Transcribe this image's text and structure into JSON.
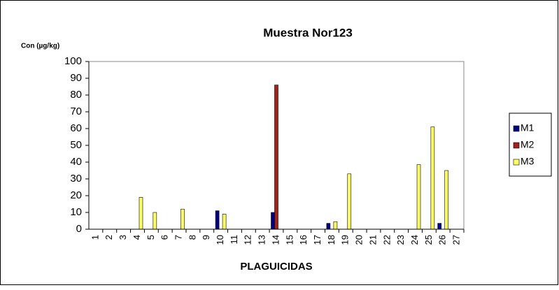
{
  "chart_data": {
    "type": "bar",
    "title": "Muestra Nor123",
    "y_label": "Con (µg/kg)",
    "x_label": "PLAGUICIDAS",
    "categories": [
      "1",
      "2",
      "3",
      "4",
      "5",
      "6",
      "7",
      "8",
      "9",
      "10",
      "11",
      "12",
      "13",
      "14",
      "15",
      "16",
      "17",
      "18",
      "19",
      "20",
      "21",
      "22",
      "23",
      "24",
      "25",
      "26",
      "27"
    ],
    "series": [
      {
        "name": "M1",
        "color": "#000080",
        "values": [
          0,
          0,
          0,
          0,
          0,
          0,
          0,
          0,
          0,
          11,
          0,
          0,
          0,
          10,
          0,
          0,
          0,
          3.5,
          0,
          0,
          0,
          0,
          0,
          0,
          0,
          3.5,
          0
        ]
      },
      {
        "name": "M2",
        "color": "#a3201d",
        "values": [
          0,
          0,
          0,
          0,
          0,
          0,
          0,
          0,
          0,
          0,
          0,
          0,
          0,
          86,
          0,
          0,
          0,
          0,
          0,
          0,
          0,
          0,
          0,
          0,
          0,
          0,
          0
        ]
      },
      {
        "name": "M3",
        "color": "#ffff66",
        "values": [
          0,
          0,
          0,
          19,
          10,
          0,
          12,
          0,
          0,
          9,
          0,
          0,
          0,
          0,
          0,
          0,
          0,
          4.5,
          33,
          0,
          0,
          0,
          0,
          38.5,
          61,
          35,
          0
        ]
      }
    ],
    "ylim": [
      0,
      100
    ],
    "yticks": [
      0,
      10,
      20,
      30,
      40,
      50,
      60,
      70,
      80,
      90,
      100
    ],
    "legend": "right"
  }
}
